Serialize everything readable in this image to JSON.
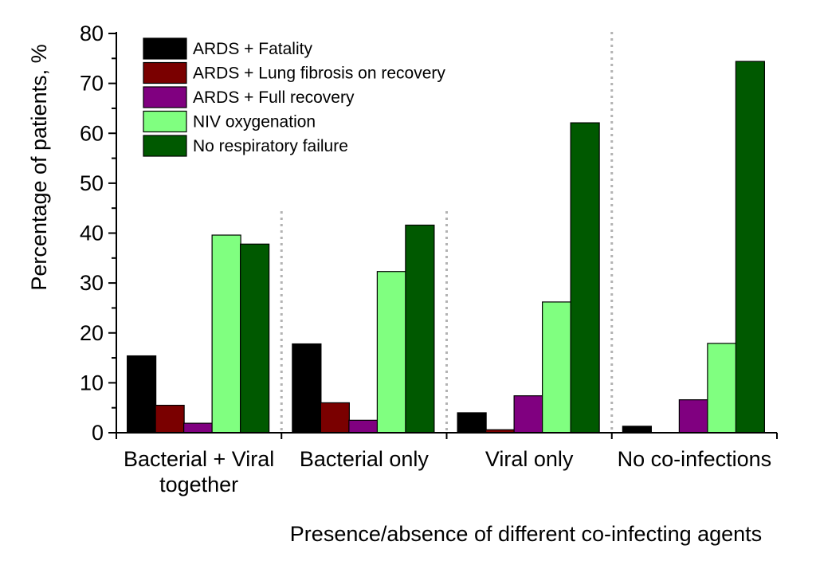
{
  "chart_data": {
    "type": "bar",
    "title": "",
    "xlabel": "Presence/absence of different co-infecting agents",
    "ylabel": "Percentage of patients, %",
    "ylim": [
      0,
      80
    ],
    "yticks": [
      "0",
      "10",
      "20",
      "30",
      "40",
      "50",
      "60",
      "70",
      "80"
    ],
    "categories": [
      [
        "Bacterial + Viral",
        "together"
      ],
      [
        "Bacterial only"
      ],
      [
        "Viral only"
      ],
      [
        "No co-infections"
      ]
    ],
    "series": [
      {
        "name": "ARDS + Fatality",
        "color": "#000000",
        "values": [
          15.4,
          17.8,
          4.0,
          1.3
        ]
      },
      {
        "name": "ARDS + Lung fibrosis on recovery",
        "color": "#7a0000",
        "values": [
          5.5,
          6.0,
          0.6,
          0.0
        ]
      },
      {
        "name": "ARDS + Full recovery",
        "color": "#800080",
        "values": [
          1.9,
          2.5,
          7.4,
          6.6
        ]
      },
      {
        "name": "NIV oxygenation",
        "color": "#80ff80",
        "values": [
          39.6,
          32.3,
          26.2,
          17.9
        ]
      },
      {
        "name": "No respiratory failure",
        "color": "#005900",
        "values": [
          37.8,
          41.6,
          62.1,
          74.4
        ]
      }
    ],
    "legend_position": "top-left",
    "grid": false,
    "group_separators": "dotted"
  }
}
